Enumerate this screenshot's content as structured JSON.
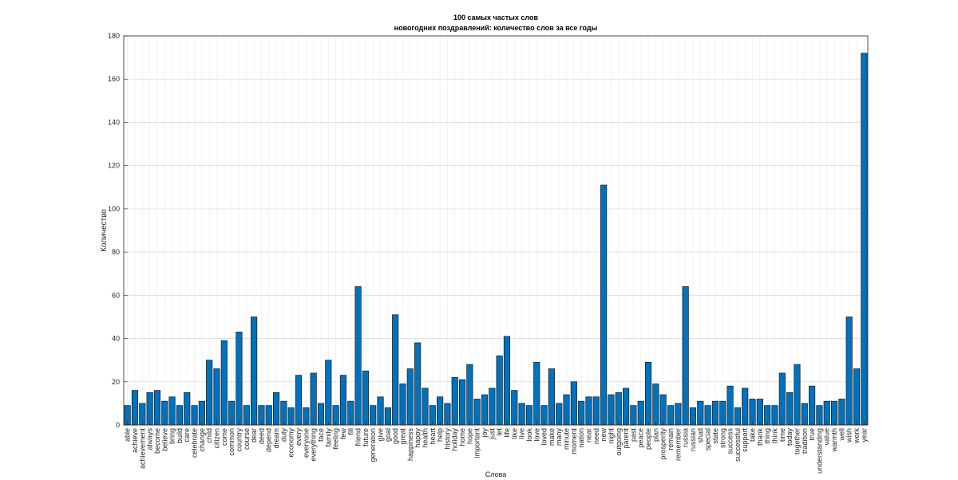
{
  "chart_data": {
    "type": "bar",
    "title": [
      "100 самых частых слов",
      "новогодних поздравлений: количество слов за все годы"
    ],
    "x_label": "Слова",
    "y_label": "Количество",
    "categories": [
      "able",
      "achieve",
      "achievement",
      "always",
      "become",
      "believe",
      "bring",
      "build",
      "care",
      "celebrate",
      "change",
      "child",
      "citizen",
      "come",
      "common",
      "country",
      "course",
      "dear",
      "deed",
      "depend",
      "dream",
      "duty",
      "economy",
      "every",
      "everyone",
      "everything",
      "face",
      "family",
      "feeling",
      "few",
      "fill",
      "friend",
      "future",
      "generation",
      "give",
      "goal",
      "good",
      "great",
      "happiness",
      "happy",
      "health",
      "heart",
      "help",
      "history",
      "holiday",
      "home",
      "hope",
      "important",
      "joy",
      "just",
      "let",
      "life",
      "like",
      "live",
      "look",
      "love",
      "loved",
      "make",
      "many",
      "minute",
      "moment",
      "nation",
      "near",
      "need",
      "new",
      "night",
      "outgoing",
      "parent",
      "past",
      "peace",
      "people",
      "plan",
      "prosperity",
      "remain",
      "remember",
      "russia",
      "russian",
      "shall",
      "special",
      "state",
      "strong",
      "success",
      "successful",
      "support",
      "take",
      "thank",
      "thing",
      "think",
      "time",
      "today",
      "together",
      "tradition",
      "true",
      "understanding",
      "value",
      "warmth",
      "well",
      "wish",
      "work",
      "year"
    ],
    "values": [
      9,
      16,
      10,
      15,
      16,
      11,
      13,
      9,
      15,
      9,
      11,
      30,
      26,
      39,
      11,
      43,
      9,
      50,
      9,
      9,
      15,
      11,
      8,
      23,
      8,
      24,
      10,
      30,
      9,
      23,
      11,
      64,
      25,
      9,
      13,
      8,
      51,
      19,
      26,
      38,
      17,
      9,
      13,
      10,
      22,
      21,
      28,
      12,
      14,
      17,
      32,
      41,
      16,
      10,
      9,
      29,
      9,
      26,
      10,
      14,
      20,
      11,
      13,
      13,
      111,
      14,
      15,
      17,
      9,
      11,
      29,
      19,
      14,
      9,
      10,
      64,
      8,
      11,
      9,
      11,
      11,
      18,
      8,
      17,
      12,
      12,
      9,
      9,
      24,
      15,
      28,
      10,
      18,
      9,
      11,
      11,
      12,
      50,
      26,
      172
    ],
    "color": "#0072bd",
    "ylim": [
      0,
      180
    ],
    "yticks": [
      0,
      20,
      40,
      60,
      80,
      100,
      120,
      140,
      160,
      180
    ],
    "grid": true
  }
}
